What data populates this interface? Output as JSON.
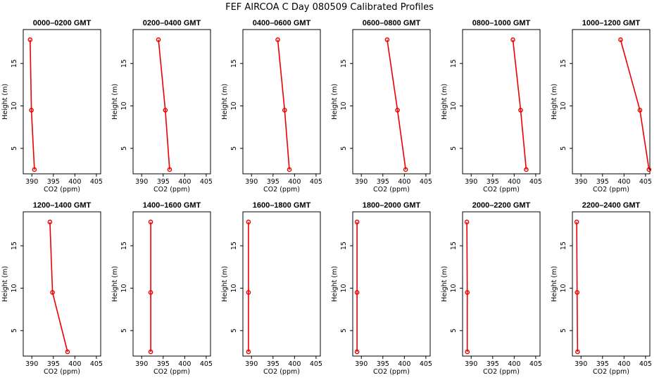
{
  "title": "FEF AIRCOA C  Day 080509  Calibrated Profiles",
  "colors": {
    "series": "#ee0000",
    "axes": "#000000"
  },
  "chart_data": [
    {
      "type": "line",
      "title": "0000–0200 GMT",
      "xlabel": "CO2 (ppm)",
      "ylabel": "Height (m)",
      "xlim": [
        388,
        406
      ],
      "ylim": [
        2,
        19
      ],
      "xticks": [
        390,
        395,
        400,
        405
      ],
      "yticks": [
        5,
        10,
        15
      ],
      "series": [
        {
          "x": [
            389.6,
            389.9,
            390.6
          ],
          "y": [
            17.8,
            9.5,
            2.5
          ]
        }
      ]
    },
    {
      "type": "line",
      "title": "0200–0400 GMT",
      "xlabel": "CO2 (ppm)",
      "ylabel": "Height (m)",
      "xlim": [
        388,
        406
      ],
      "ylim": [
        2,
        19
      ],
      "xticks": [
        390,
        395,
        400,
        405
      ],
      "yticks": [
        5,
        10,
        15
      ],
      "series": [
        {
          "x": [
            393.9,
            395.5,
            396.5
          ],
          "y": [
            17.8,
            9.5,
            2.5
          ]
        }
      ]
    },
    {
      "type": "line",
      "title": "0400–0600 GMT",
      "xlabel": "CO2 (ppm)",
      "ylabel": "Height (m)",
      "xlim": [
        388,
        406
      ],
      "ylim": [
        2,
        19
      ],
      "xticks": [
        390,
        395,
        400,
        405
      ],
      "yticks": [
        5,
        10,
        15
      ],
      "series": [
        {
          "x": [
            396.1,
            397.7,
            398.8
          ],
          "y": [
            17.8,
            9.5,
            2.5
          ]
        }
      ]
    },
    {
      "type": "line",
      "title": "0600–0800 GMT",
      "xlabel": "CO2 (ppm)",
      "ylabel": "Height (m)",
      "xlim": [
        388,
        406
      ],
      "ylim": [
        2,
        19
      ],
      "xticks": [
        390,
        395,
        400,
        405
      ],
      "yticks": [
        5,
        10,
        15
      ],
      "series": [
        {
          "x": [
            396.0,
            398.4,
            400.3
          ],
          "y": [
            17.8,
            9.5,
            2.5
          ]
        }
      ]
    },
    {
      "type": "line",
      "title": "0800–1000 GMT",
      "xlabel": "CO2 (ppm)",
      "ylabel": "Height (m)",
      "xlim": [
        388,
        406
      ],
      "ylim": [
        2,
        19
      ],
      "xticks": [
        390,
        395,
        400,
        405
      ],
      "yticks": [
        5,
        10,
        15
      ],
      "series": [
        {
          "x": [
            399.7,
            401.5,
            402.8
          ],
          "y": [
            17.8,
            9.5,
            2.5
          ]
        }
      ]
    },
    {
      "type": "line",
      "title": "1000–1200 GMT",
      "xlabel": "CO2 (ppm)",
      "ylabel": "Height (m)",
      "xlim": [
        388,
        406
      ],
      "ylim": [
        2,
        19
      ],
      "xticks": [
        390,
        395,
        400,
        405
      ],
      "yticks": [
        5,
        10,
        15
      ],
      "series": [
        {
          "x": [
            399.2,
            403.7,
            405.8
          ],
          "y": [
            17.8,
            9.5,
            2.5
          ]
        }
      ]
    },
    {
      "type": "line",
      "title": "1200–1400 GMT",
      "xlabel": "CO2 (ppm)",
      "ylabel": "Height (m)",
      "xlim": [
        388,
        406
      ],
      "ylim": [
        2,
        19
      ],
      "xticks": [
        390,
        395,
        400,
        405
      ],
      "yticks": [
        5,
        10,
        15
      ],
      "series": [
        {
          "x": [
            394.2,
            394.8,
            398.3
          ],
          "y": [
            17.8,
            9.5,
            2.5
          ]
        }
      ]
    },
    {
      "type": "line",
      "title": "1400–1600 GMT",
      "xlabel": "CO2 (ppm)",
      "ylabel": "Height (m)",
      "xlim": [
        388,
        406
      ],
      "ylim": [
        2,
        19
      ],
      "xticks": [
        390,
        395,
        400,
        405
      ],
      "yticks": [
        5,
        10,
        15
      ],
      "series": [
        {
          "x": [
            392.1,
            392.1,
            392.1
          ],
          "y": [
            17.8,
            9.5,
            2.5
          ]
        }
      ]
    },
    {
      "type": "line",
      "title": "1600–1800 GMT",
      "xlabel": "CO2 (ppm)",
      "ylabel": "Height (m)",
      "xlim": [
        388,
        406
      ],
      "ylim": [
        2,
        19
      ],
      "xticks": [
        390,
        395,
        400,
        405
      ],
      "yticks": [
        5,
        10,
        15
      ],
      "series": [
        {
          "x": [
            389.3,
            389.3,
            389.3
          ],
          "y": [
            17.8,
            9.5,
            2.5
          ]
        }
      ]
    },
    {
      "type": "line",
      "title": "1800–2000 GMT",
      "xlabel": "CO2 (ppm)",
      "ylabel": "Height (m)",
      "xlim": [
        388,
        406
      ],
      "ylim": [
        2,
        19
      ],
      "xticks": [
        390,
        395,
        400,
        405
      ],
      "yticks": [
        5,
        10,
        15
      ],
      "series": [
        {
          "x": [
            389.0,
            389.0,
            389.0
          ],
          "y": [
            17.8,
            9.5,
            2.5
          ]
        }
      ]
    },
    {
      "type": "line",
      "title": "2000–2200 GMT",
      "xlabel": "CO2 (ppm)",
      "ylabel": "Height (m)",
      "xlim": [
        388,
        406
      ],
      "ylim": [
        2,
        19
      ],
      "xticks": [
        390,
        395,
        400,
        405
      ],
      "yticks": [
        5,
        10,
        15
      ],
      "series": [
        {
          "x": [
            389.0,
            389.1,
            389.1
          ],
          "y": [
            17.8,
            9.5,
            2.5
          ]
        }
      ]
    },
    {
      "type": "line",
      "title": "2200–2400 GMT",
      "xlabel": "CO2 (ppm)",
      "ylabel": "Height (m)",
      "xlim": [
        388,
        406
      ],
      "ylim": [
        2,
        19
      ],
      "xticks": [
        390,
        395,
        400,
        405
      ],
      "yticks": [
        5,
        10,
        15
      ],
      "series": [
        {
          "x": [
            389.0,
            389.1,
            389.2
          ],
          "y": [
            17.8,
            9.5,
            2.5
          ]
        }
      ]
    }
  ]
}
